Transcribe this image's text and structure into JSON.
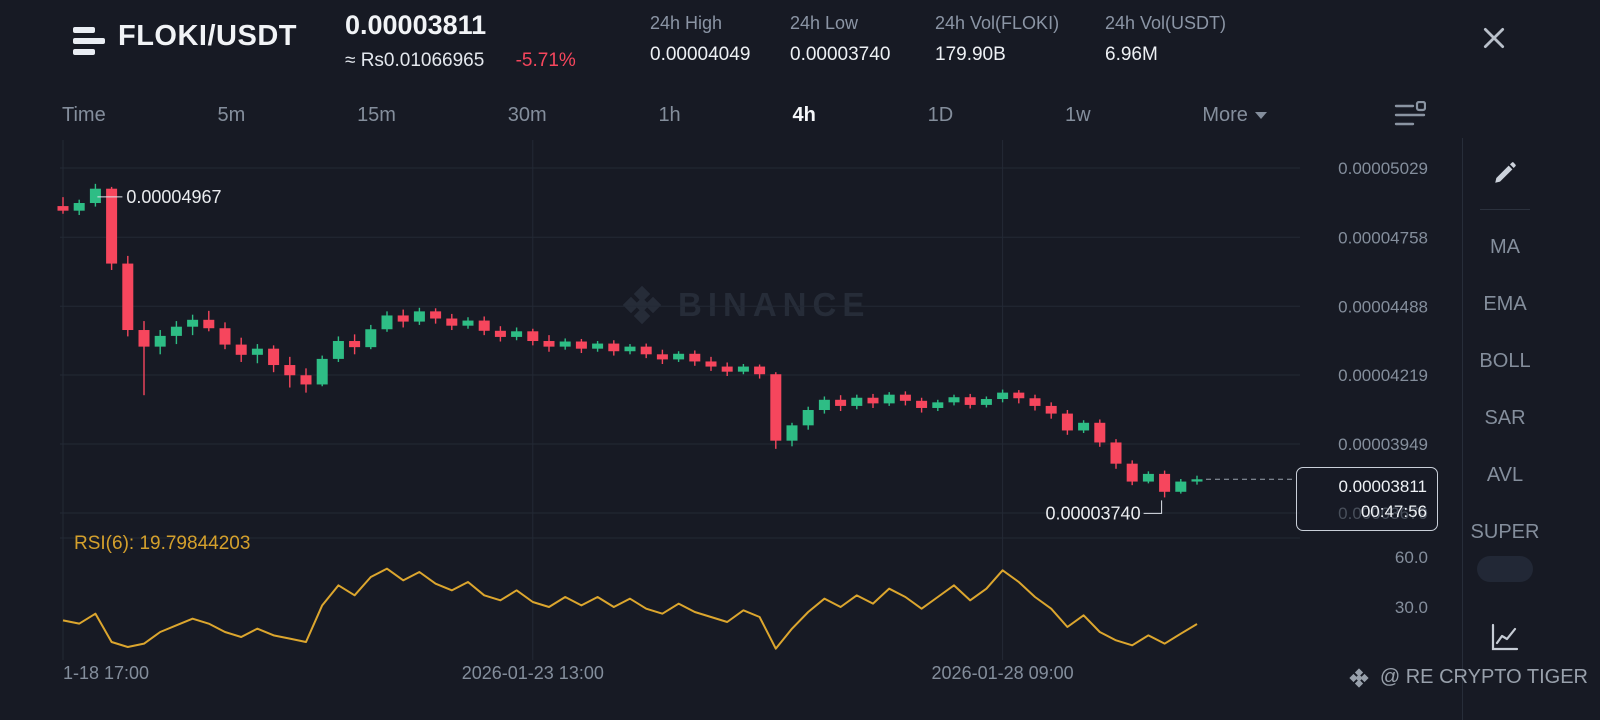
{
  "colors": {
    "up": "#2ebd85",
    "down": "#f6465d",
    "rsi_line": "#dca62e",
    "grid": "#232935",
    "axis_text": "#848e9c",
    "annotation_text": "#eaecef"
  },
  "header": {
    "symbol": "FLOKI/USDT",
    "last_price": "0.00003811",
    "fiat_price": "≈ Rs0.01066965",
    "change_percent": "-5.71%",
    "stats": [
      {
        "label": "24h High",
        "value": "0.00004049"
      },
      {
        "label": "24h Low",
        "value": "0.00003740"
      },
      {
        "label": "24h Vol(FLOKI)",
        "value": "179.90B"
      },
      {
        "label": "24h Vol(USDT)",
        "value": "6.96M"
      }
    ]
  },
  "intervals": {
    "items": [
      "Time",
      "5m",
      "15m",
      "30m",
      "1h",
      "4h",
      "1D",
      "1w"
    ],
    "active": "4h",
    "more_label": "More"
  },
  "indicator_panel": {
    "items": [
      "MA",
      "EMA",
      "BOLL",
      "SAR",
      "AVL",
      "SUPER"
    ]
  },
  "rsi_label": "RSI(6): 19.79844203",
  "price_tag": {
    "price": "0.00003811",
    "countdown": "00:47:56"
  },
  "watermark_center": "BINANCE",
  "watermark_corner": "@ RE CRYPTO TIGER",
  "chart_data": {
    "type": "candlestick",
    "pair": "FLOKI/USDT",
    "interval": "4h",
    "price_unit": "1e-8 USDT",
    "y_axis": [
      {
        "text": "0.00005029",
        "value": 5029
      },
      {
        "text": "0.00004758",
        "value": 4758
      },
      {
        "text": "0.00004488",
        "value": 4488
      },
      {
        "text": "0.00004219",
        "value": 4219
      },
      {
        "text": "0.00003949",
        "value": 3949
      },
      {
        "text": "0.00003679",
        "value": 3679
      }
    ],
    "x_axis_labels": [
      {
        "text": "1-18 17:00",
        "index": 0
      },
      {
        "text": "2026-01-23 13:00",
        "index": 29
      },
      {
        "text": "2026-01-28 09:00",
        "index": 58
      }
    ],
    "rsi_axis_labels": [
      {
        "text": "60.0",
        "value": 60
      },
      {
        "text": "30.0",
        "value": 30
      }
    ],
    "current_price": 3811,
    "annotations": {
      "high": {
        "text": "0.00004967",
        "candle_index": 2
      },
      "low": {
        "text": "0.00003740",
        "candle_index": 68
      }
    },
    "candles": [
      [
        4880,
        4915,
        4850,
        4862
      ],
      [
        4862,
        4905,
        4845,
        4892
      ],
      [
        4892,
        4967,
        4878,
        4948
      ],
      [
        4948,
        4955,
        4630,
        4655
      ],
      [
        4655,
        4685,
        4370,
        4395
      ],
      [
        4395,
        4430,
        4140,
        4330
      ],
      [
        4330,
        4395,
        4300,
        4372
      ],
      [
        4372,
        4430,
        4340,
        4408
      ],
      [
        4408,
        4455,
        4375,
        4435
      ],
      [
        4435,
        4470,
        4390,
        4402
      ],
      [
        4402,
        4425,
        4320,
        4338
      ],
      [
        4338,
        4365,
        4270,
        4298
      ],
      [
        4298,
        4340,
        4265,
        4322
      ],
      [
        4322,
        4335,
        4230,
        4258
      ],
      [
        4258,
        4290,
        4170,
        4218
      ],
      [
        4218,
        4245,
        4150,
        4182
      ],
      [
        4182,
        4295,
        4175,
        4282
      ],
      [
        4282,
        4370,
        4270,
        4352
      ],
      [
        4352,
        4378,
        4300,
        4328
      ],
      [
        4328,
        4415,
        4320,
        4398
      ],
      [
        4398,
        4468,
        4388,
        4452
      ],
      [
        4452,
        4475,
        4405,
        4428
      ],
      [
        4428,
        4482,
        4415,
        4468
      ],
      [
        4468,
        4480,
        4420,
        4440
      ],
      [
        4440,
        4458,
        4395,
        4412
      ],
      [
        4412,
        4445,
        4400,
        4432
      ],
      [
        4432,
        4448,
        4375,
        4392
      ],
      [
        4392,
        4410,
        4350,
        4368
      ],
      [
        4368,
        4405,
        4355,
        4390
      ],
      [
        4390,
        4400,
        4335,
        4352
      ],
      [
        4352,
        4375,
        4310,
        4330
      ],
      [
        4330,
        4362,
        4318,
        4350
      ],
      [
        4350,
        4360,
        4305,
        4322
      ],
      [
        4322,
        4352,
        4310,
        4342
      ],
      [
        4342,
        4355,
        4295,
        4312
      ],
      [
        4312,
        4340,
        4300,
        4330
      ],
      [
        4330,
        4342,
        4285,
        4300
      ],
      [
        4300,
        4318,
        4262,
        4280
      ],
      [
        4280,
        4312,
        4270,
        4302
      ],
      [
        4302,
        4315,
        4255,
        4272
      ],
      [
        4272,
        4290,
        4235,
        4252
      ],
      [
        4252,
        4268,
        4215,
        4232
      ],
      [
        4232,
        4262,
        4222,
        4252
      ],
      [
        4252,
        4260,
        4205,
        4222
      ],
      [
        4222,
        4230,
        3930,
        3962
      ],
      [
        3962,
        4032,
        3940,
        4022
      ],
      [
        4022,
        4095,
        4005,
        4082
      ],
      [
        4082,
        4135,
        4068,
        4122
      ],
      [
        4122,
        4140,
        4078,
        4098
      ],
      [
        4098,
        4142,
        4085,
        4130
      ],
      [
        4130,
        4145,
        4090,
        4108
      ],
      [
        4108,
        4152,
        4098,
        4142
      ],
      [
        4142,
        4155,
        4100,
        4118
      ],
      [
        4118,
        4130,
        4072,
        4090
      ],
      [
        4090,
        4122,
        4078,
        4112
      ],
      [
        4112,
        4142,
        4100,
        4132
      ],
      [
        4132,
        4145,
        4088,
        4102
      ],
      [
        4102,
        4135,
        4092,
        4125
      ],
      [
        4125,
        4162,
        4112,
        4150
      ],
      [
        4150,
        4160,
        4108,
        4128
      ],
      [
        4128,
        4142,
        4080,
        4098
      ],
      [
        4098,
        4112,
        4048,
        4068
      ],
      [
        4068,
        4082,
        3985,
        4002
      ],
      [
        4002,
        4042,
        3992,
        4032
      ],
      [
        4032,
        4045,
        3938,
        3955
      ],
      [
        3955,
        3968,
        3852,
        3872
      ],
      [
        3872,
        3885,
        3788,
        3802
      ],
      [
        3802,
        3842,
        3795,
        3832
      ],
      [
        3832,
        3845,
        3740,
        3762
      ],
      [
        3762,
        3812,
        3755,
        3802
      ],
      [
        3802,
        3825,
        3790,
        3811
      ]
    ],
    "rsi_values": [
      22,
      20,
      26,
      9,
      6,
      8,
      15,
      19,
      23,
      20,
      15,
      12,
      17,
      13,
      11,
      9,
      31,
      43,
      37,
      48,
      53,
      46,
      51,
      44,
      40,
      45,
      37,
      34,
      40,
      33,
      30,
      36,
      31,
      36,
      30,
      35,
      29,
      26,
      32,
      27,
      24,
      21,
      28,
      24,
      5,
      17,
      27,
      35,
      30,
      37,
      32,
      41,
      36,
      29,
      36,
      43,
      34,
      41,
      52,
      45,
      36,
      29,
      18,
      25,
      15,
      10,
      7,
      13,
      8,
      14,
      19.8
    ]
  }
}
